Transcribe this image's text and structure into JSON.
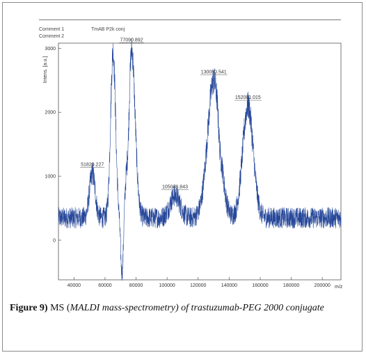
{
  "header": {
    "comment1_label": "Comment 1",
    "comment1_value": "TmAB P2k conj",
    "comment2_label": "Comment 2"
  },
  "caption": {
    "label": "Figure 9)",
    "lead": " MS (",
    "text": "MALDI mass-spectrometry) of trastuzumab-PEG 2000 conjugate"
  },
  "chart_data": {
    "type": "line",
    "xlabel": "m/z",
    "ylabel": "Intens. [a.u.]",
    "xlim": [
      30000,
      212000
    ],
    "ylim": [
      -620,
      3080
    ],
    "x_ticks": [
      40000,
      60000,
      80000,
      100000,
      120000,
      140000,
      160000,
      180000,
      200000
    ],
    "x_tick_labels": [
      "40000",
      "60000",
      "80000",
      "100000",
      "120000",
      "140000",
      "160000",
      "180000",
      "200000"
    ],
    "y_ticks": [
      0,
      1000,
      2000,
      3000
    ],
    "y_tick_labels": [
      "0",
      "1000",
      "2000",
      "3000"
    ],
    "grid": false,
    "line_color": "#27489a",
    "baseline": 350,
    "noise_amplitude": 150,
    "peaks": [
      {
        "x": 51829.227,
        "label": "51829.227",
        "height": 1050,
        "width": 1800
      },
      {
        "x": 65200,
        "label": "",
        "height": 2950,
        "width": 1600
      },
      {
        "x": 77090.892,
        "label": "77090.892",
        "height": 3000,
        "width": 2300
      },
      {
        "x": 105086.843,
        "label": "105086.843",
        "height": 700,
        "width": 3200
      },
      {
        "x": 130050.541,
        "label": "130050.541",
        "height": 2500,
        "width": 4000
      },
      {
        "x": 152081.015,
        "label": "152081.015",
        "height": 2100,
        "width": 3400
      }
    ],
    "dips": [
      {
        "x": 71000,
        "depth": -950
      },
      {
        "x": 75000,
        "depth": -500
      },
      {
        "x": 134000,
        "depth": -250
      }
    ]
  }
}
